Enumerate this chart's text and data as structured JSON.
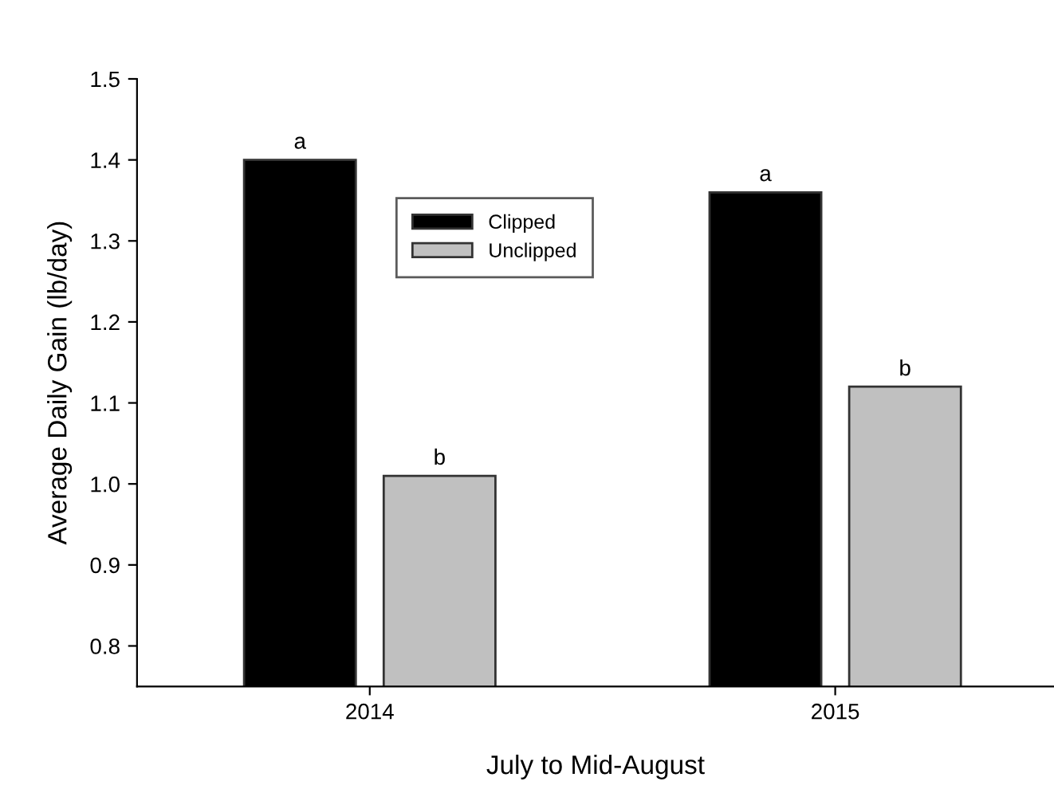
{
  "chart_data": {
    "type": "bar",
    "xlabel": "July to Mid-August",
    "ylabel": "Average Daily Gain (lb/day)",
    "categories": [
      "2014",
      "2015"
    ],
    "series": [
      {
        "name": "Clipped",
        "color": "#000000",
        "values": [
          1.4,
          1.36
        ]
      },
      {
        "name": "Unclipped",
        "color": "#c0c0c0",
        "values": [
          1.01,
          1.12
        ]
      }
    ],
    "ylim": [
      0.75,
      1.5
    ],
    "yticks": [
      0.8,
      0.9,
      {
        "value": 1.0,
        "label": "1.0"
      },
      1.1,
      1.2,
      1.3,
      1.4,
      1.5
    ],
    "grid": false,
    "legend": "top",
    "annotations": [
      "a",
      "b",
      "a",
      "b"
    ]
  }
}
